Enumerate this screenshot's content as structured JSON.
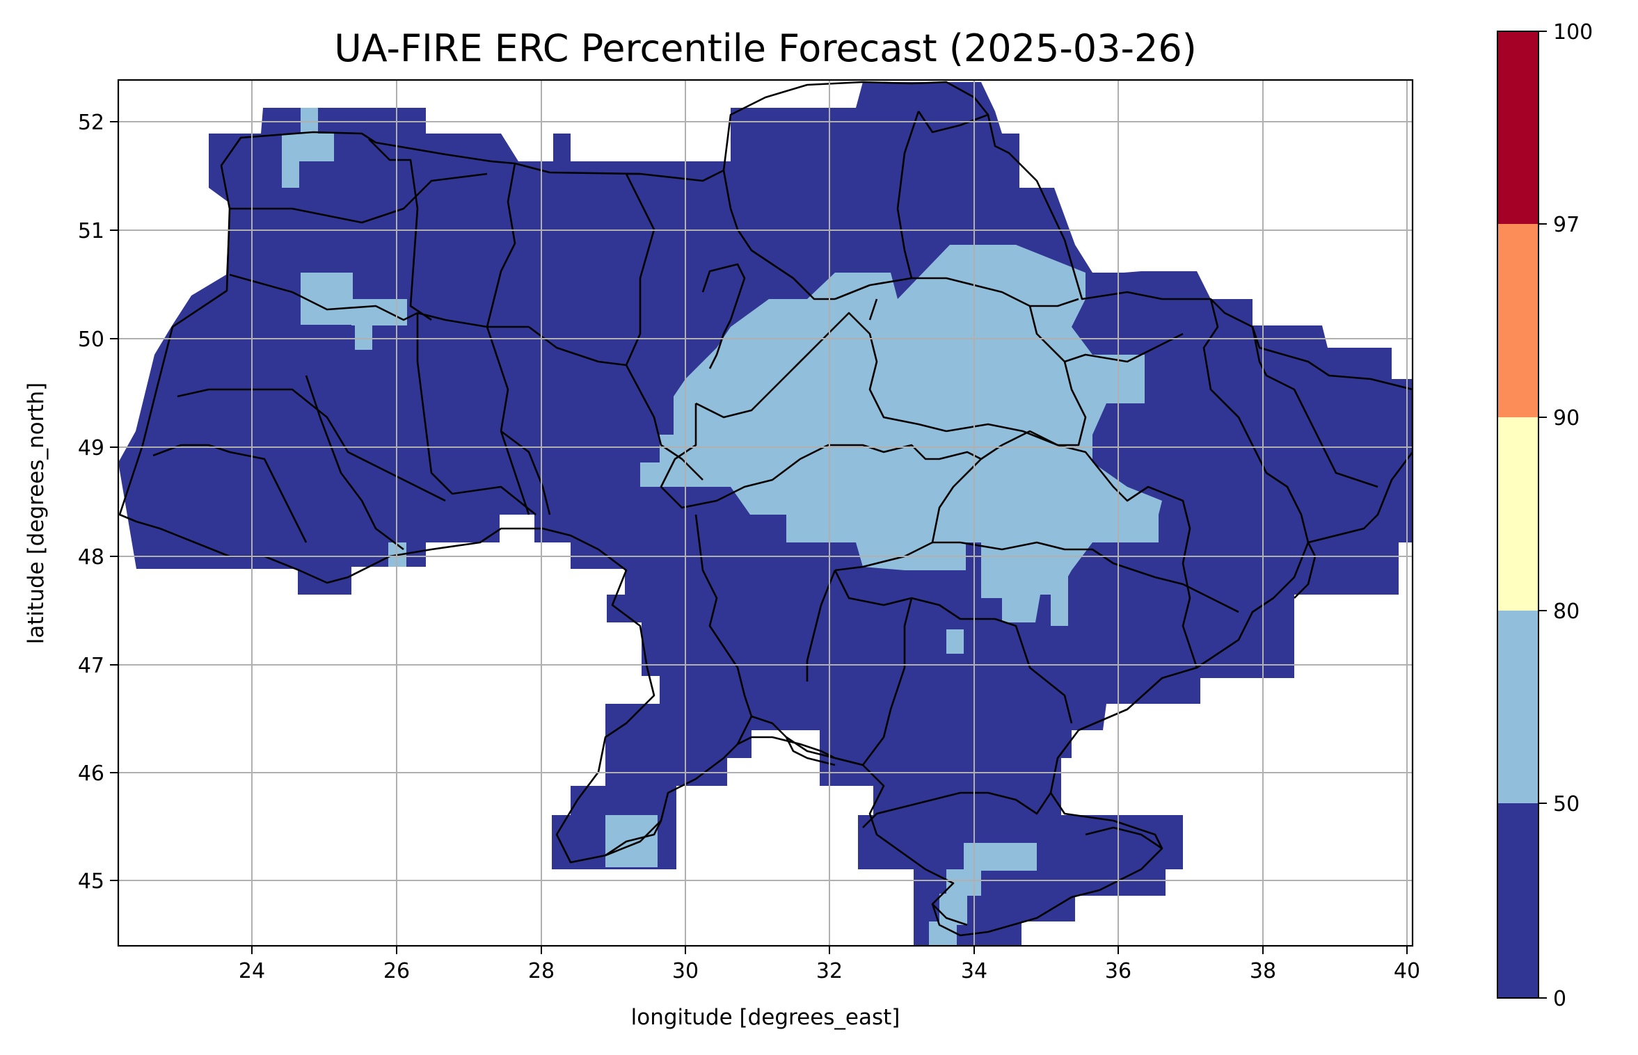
{
  "title": "UA-FIRE ERC Percentile Forecast (2025-03-26)",
  "map": {
    "xlabel": "longitude [degrees_east]",
    "ylabel": "latitude [degrees_north]",
    "xlim": [
      22.15,
      40.15
    ],
    "ylim": [
      44.35,
      52.4
    ],
    "xticks": [
      24,
      26,
      28,
      30,
      32,
      34,
      36,
      38,
      40
    ],
    "yticks": [
      45,
      46,
      47,
      48,
      49,
      50,
      51,
      52
    ],
    "grid": true
  },
  "colorbar": {
    "boundaries": [
      0,
      50,
      80,
      90,
      97,
      100
    ],
    "colors": [
      "#313695",
      "#91bfdb",
      "#ffffbf",
      "#fc8d59",
      "#a50026"
    ]
  },
  "chart_data": {
    "type": "heatmap",
    "title": "UA-FIRE ERC Percentile Forecast (2025-03-26)",
    "xlabel": "longitude [degrees_east]",
    "ylabel": "latitude [degrees_north]",
    "xlim": [
      22.15,
      40.15
    ],
    "ylim": [
      44.35,
      52.4
    ],
    "grid": true,
    "class_boundaries": [
      0,
      50,
      80,
      90,
      97,
      100
    ],
    "class_colors": [
      "#313695",
      "#91bfdb",
      "#ffffbf",
      "#fc8d59",
      "#a50026"
    ],
    "dominant_class": "0-50",
    "class_50_80_regions": [
      {
        "lon": [
          30.0,
          36.5
        ],
        "lat": [
          47.9,
          50.6
        ]
      },
      {
        "lon": [
          32.9,
          35.6
        ],
        "lat": [
          50.6,
          51.0
        ]
      },
      {
        "lon": [
          34.8,
          36.6
        ],
        "lat": [
          47.5,
          48.7
        ]
      },
      {
        "lon": [
          24.6,
          25.6
        ],
        "lat": [
          50.0,
          50.6
        ]
      },
      {
        "lon": [
          24.4,
          25.2
        ],
        "lat": [
          51.4,
          52.1
        ]
      },
      {
        "lon": [
          28.9,
          29.6
        ],
        "lat": [
          45.1,
          45.6
        ]
      },
      {
        "lon": [
          33.4,
          35.0
        ],
        "lat": [
          44.5,
          45.3
        ]
      }
    ]
  }
}
